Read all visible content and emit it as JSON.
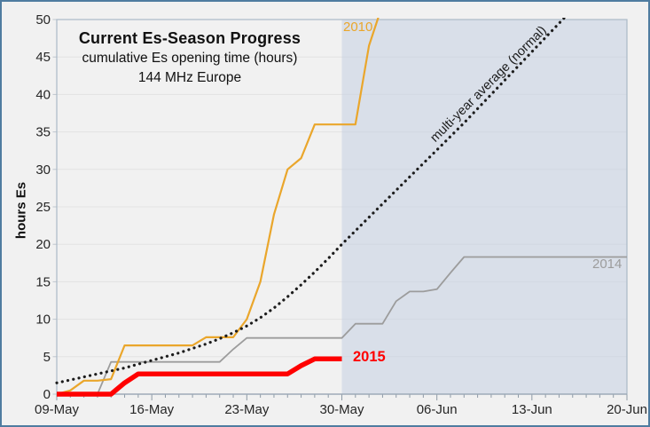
{
  "title": {
    "line1": "Current Es-Season Progress",
    "line2": "cumulative Es opening time (hours)",
    "line3": "144 MHz Europe"
  },
  "y_axis": {
    "label": "hours Es",
    "min": 0,
    "max": 50,
    "tick_step": 5,
    "tick_labels": [
      "0",
      "5",
      "10",
      "15",
      "20",
      "25",
      "30",
      "35",
      "40",
      "45",
      "50"
    ]
  },
  "x_axis": {
    "tick_labels": [
      "09-May",
      "16-May",
      "23-May",
      "30-May",
      "06-Jun",
      "13-Jun",
      "20-Jun"
    ],
    "days_total": 42,
    "days_per_major_tick": 7,
    "minor_tick_every_days": 1
  },
  "shaded_region": {
    "start_label": "30-May",
    "start_day": 21,
    "end_day": 42,
    "fill": "rgba(197,208,226,0.55)"
  },
  "colors": {
    "frame_border": "#4F7CA0",
    "background": "#F1F1F1",
    "plot_border": "#ABB9C7",
    "gridline": "#E2E2E2",
    "tick": "#8E9AA6",
    "tick_text": "#262626"
  },
  "chart_data": {
    "type": "line",
    "x_unit": "day index from 09-May",
    "ylim": [
      0,
      50
    ],
    "grid": "horizontal, every 5 hours",
    "legend_position": "labels placed next to lines",
    "series": [
      {
        "id": "2010",
        "label": "2010",
        "color": "#EAA62B",
        "style": "solid",
        "width": 2.2,
        "values": [
          0,
          0.5,
          1.8,
          1.8,
          2.0,
          6.5,
          6.5,
          6.5,
          6.5,
          6.5,
          6.5,
          7.6,
          7.6,
          7.6,
          10,
          15,
          24,
          30,
          31.5,
          36,
          36,
          36,
          36,
          46.5,
          52
        ]
      },
      {
        "id": "multi-year-average",
        "label": "multi-year average (normal)",
        "color": "#1C1C1C",
        "style": "dotted",
        "width": 3.2,
        "values": [
          1.5,
          1.9,
          2.3,
          2.7,
          3.1,
          3.5,
          4.0,
          4.5,
          5.0,
          5.5,
          6.1,
          6.7,
          7.4,
          8.2,
          9.1,
          10.2,
          11.5,
          13.0,
          14.6,
          16.3,
          18.1,
          20.0,
          21.8,
          23.6,
          25.4,
          27.2,
          29.0,
          30.8,
          32.6,
          34.4,
          36.2,
          38.1,
          40.0,
          41.9,
          43.8,
          45.7,
          47.6,
          49.5,
          51.4
        ]
      },
      {
        "id": "2014",
        "label": "2014",
        "color": "#9C9C9C",
        "style": "solid",
        "width": 1.8,
        "values": [
          0,
          0,
          0,
          0,
          4.3,
          4.3,
          4.3,
          4.3,
          4.3,
          4.3,
          4.3,
          4.3,
          4.3,
          6,
          7.5,
          7.5,
          7.5,
          7.5,
          7.5,
          7.5,
          7.5,
          7.5,
          9.4,
          9.4,
          9.4,
          12.4,
          13.7,
          13.7,
          14,
          16.2,
          18.3,
          18.3,
          18.3,
          18.3,
          18.3,
          18.3,
          18.3,
          18.3,
          18.3,
          18.3,
          18.3,
          18.3,
          18.3
        ]
      },
      {
        "id": "2015",
        "label": "2015",
        "color": "#FF0000",
        "style": "solid",
        "width": 5.5,
        "values": [
          0,
          0,
          0,
          0,
          0,
          1.5,
          2.7,
          2.7,
          2.7,
          2.7,
          2.7,
          2.7,
          2.7,
          2.7,
          2.7,
          2.7,
          2.7,
          2.7,
          3.8,
          4.7,
          4.7,
          4.7
        ]
      }
    ]
  }
}
